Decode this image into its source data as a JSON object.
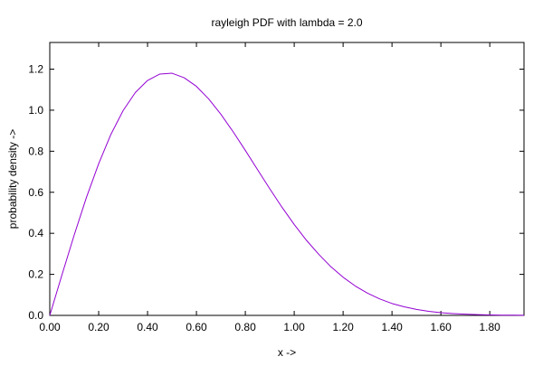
{
  "chart_data": {
    "type": "line",
    "title": "rayleigh PDF with lambda = 2.0",
    "xlabel": "x ->",
    "ylabel": "probability density ->",
    "xlim": [
      0,
      1.94
    ],
    "ylim": [
      0,
      1.33
    ],
    "xticks": [
      0,
      0.2,
      0.4,
      0.6,
      0.8,
      1.0,
      1.2,
      1.4,
      1.6,
      1.8
    ],
    "xtick_labels": [
      "0.00",
      "0.20",
      "0.40",
      "0.60",
      "0.80",
      "1.00",
      "1.20",
      "1.40",
      "1.60",
      "1.80"
    ],
    "yticks": [
      0,
      0.2,
      0.4,
      0.6,
      0.8,
      1.0,
      1.2
    ],
    "ytick_labels": [
      "0.0",
      "0.2",
      "0.4",
      "0.6",
      "0.8",
      "1.0",
      "1.2"
    ],
    "grid": false,
    "legend": "none",
    "series": [
      {
        "color": "#9400d3",
        "x": [
          0.0,
          0.05,
          0.1,
          0.15,
          0.2,
          0.25,
          0.3,
          0.35,
          0.4,
          0.45,
          0.5,
          0.55,
          0.6,
          0.65,
          0.7,
          0.75,
          0.8,
          0.85,
          0.9,
          0.95,
          1.0,
          1.05,
          1.1,
          1.15,
          1.2,
          1.25,
          1.3,
          1.35,
          1.4,
          1.45,
          1.5,
          1.55,
          1.6,
          1.65,
          1.7,
          1.75,
          1.8,
          1.85,
          1.9,
          1.94
        ],
        "y": [
          0.0,
          0.198,
          0.392,
          0.575,
          0.739,
          0.882,
          0.998,
          1.086,
          1.145,
          1.176,
          1.18,
          1.158,
          1.116,
          1.055,
          0.98,
          0.895,
          0.804,
          0.71,
          0.617,
          0.527,
          0.443,
          0.366,
          0.298,
          0.237,
          0.186,
          0.143,
          0.108,
          0.08,
          0.058,
          0.042,
          0.029,
          0.02,
          0.013,
          0.009,
          0.006,
          0.004,
          0.002,
          0.001,
          0.001,
          0.0005
        ]
      }
    ]
  }
}
